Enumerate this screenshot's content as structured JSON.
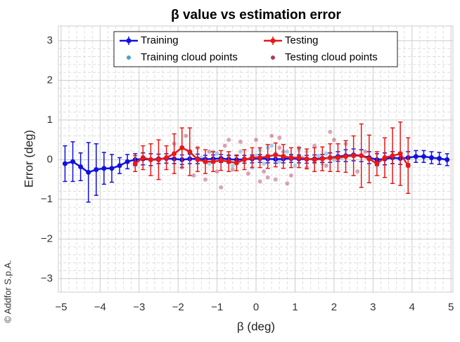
{
  "chart_data": {
    "type": "errorbar",
    "title": "β value vs estimation error",
    "x_label": "β (deg)",
    "y_label": "Error (deg)",
    "watermark": "© Addfor S.p.A.",
    "xlim": [
      -5.07,
      5.05
    ],
    "ylim": [
      -3.34,
      3.37
    ],
    "xticks": [
      {
        "value": -5,
        "label": "−5"
      },
      {
        "value": -4,
        "label": "−4"
      },
      {
        "value": -3,
        "label": "−3"
      },
      {
        "value": -2,
        "label": "−2"
      },
      {
        "value": -1,
        "label": "−1"
      },
      0,
      1,
      2,
      3,
      4,
      5
    ],
    "yticks": [
      {
        "value": -3,
        "label": "−3"
      },
      {
        "value": -2,
        "label": "−2"
      },
      {
        "value": -1,
        "label": "−1"
      },
      0,
      1,
      2,
      3
    ],
    "grid": true,
    "minor_divisions": 5,
    "legend": "north",
    "series": [
      {
        "name": "Training",
        "kind": "errorbar",
        "color": "#1010e0",
        "x": [
          -4.9,
          -4.7,
          -4.5,
          -4.3,
          -4.1,
          -3.9,
          -3.7,
          -3.5,
          -3.3,
          -3.1,
          -2.9,
          -2.7,
          -2.5,
          -2.3,
          -2.1,
          -1.9,
          -1.7,
          -1.5,
          -1.3,
          -1.1,
          -0.9,
          -0.7,
          -0.5,
          -0.3,
          -0.1,
          0.1,
          0.3,
          0.5,
          0.7,
          0.9,
          1.1,
          1.3,
          1.5,
          1.7,
          1.9,
          2.1,
          2.3,
          2.5,
          2.7,
          2.9,
          3.1,
          3.3,
          3.5,
          3.7,
          3.9,
          4.1,
          4.3,
          4.5,
          4.7,
          4.9
        ],
        "values": [
          -0.1,
          -0.05,
          -0.18,
          -0.32,
          -0.25,
          -0.22,
          -0.22,
          -0.15,
          -0.05,
          0,
          0.02,
          0,
          0.02,
          0.03,
          0.02,
          0,
          0.02,
          0.02,
          0.01,
          0.02,
          0.03,
          0.01,
          0,
          0.01,
          0.02,
          0.03,
          0.02,
          0.01,
          0.02,
          0.03,
          0.02,
          0.01,
          0.02,
          0.03,
          0.05,
          0.08,
          0.1,
          0.12,
          0.1,
          0.05,
          0,
          0.02,
          0.05,
          0.03,
          0.05,
          0.08,
          0.08,
          0.05,
          0.03,
          0
        ],
        "errors": [
          0.45,
          0.5,
          0.35,
          0.75,
          0.65,
          0.4,
          0.35,
          0.2,
          0.18,
          0.15,
          0.15,
          0.15,
          0.12,
          0.12,
          0.12,
          0.12,
          0.12,
          0.12,
          0.1,
          0.1,
          0.1,
          0.1,
          0.1,
          0.1,
          0.1,
          0.1,
          0.1,
          0.1,
          0.1,
          0.1,
          0.1,
          0.1,
          0.1,
          0.1,
          0.12,
          0.12,
          0.15,
          0.15,
          0.15,
          0.15,
          0.15,
          0.15,
          0.15,
          0.15,
          0.15,
          0.15,
          0.15,
          0.15,
          0.15,
          0.15
        ]
      },
      {
        "name": "Testing",
        "kind": "errorbar",
        "color": "#e81818",
        "x": [
          -3.1,
          -2.9,
          -2.7,
          -2.5,
          -2.3,
          -2.1,
          -1.9,
          -1.7,
          -1.5,
          -1.3,
          -1.1,
          -0.9,
          -0.7,
          -0.5,
          -0.3,
          -0.1,
          0.1,
          0.3,
          0.5,
          0.7,
          0.9,
          1.1,
          1.3,
          1.5,
          1.7,
          1.9,
          2.1,
          2.3,
          2.5,
          2.7,
          2.9,
          3.1,
          3.3,
          3.5,
          3.7,
          3.9
        ],
        "values": [
          -0.1,
          0.05,
          0,
          0,
          0.05,
          0.15,
          0.3,
          0.2,
          0,
          -0.05,
          -0.05,
          -0.02,
          -0.05,
          -0.08,
          0,
          0.05,
          0.05,
          0.08,
          0.12,
          0.08,
          0.05,
          0.05,
          0.02,
          0,
          0.02,
          0.05,
          0.05,
          0.08,
          0.1,
          0.1,
          0.02,
          -0.1,
          0.05,
          0.1,
          0.15,
          -0.15
        ],
        "errors": [
          0.2,
          0.3,
          0.4,
          0.5,
          0.3,
          0.5,
          0.5,
          0.6,
          0.3,
          0.3,
          0.25,
          0.25,
          0.25,
          0.2,
          0.25,
          0.25,
          0.25,
          0.3,
          0.3,
          0.3,
          0.25,
          0.25,
          0.25,
          0.3,
          0.3,
          0.35,
          0.35,
          0.4,
          0.5,
          0.8,
          0.6,
          0.3,
          0.5,
          0.7,
          0.8,
          0.7
        ]
      },
      {
        "name": "Training cloud points",
        "kind": "cloud",
        "color": "#4a9fd0",
        "x": [
          -1.4,
          -1.2,
          -1.0,
          -0.9,
          -0.7,
          -0.6,
          -0.4,
          -0.3,
          -0.1,
          0,
          0.1,
          0.2,
          0.3,
          0.5,
          0.6,
          0.8,
          0.9,
          1.0,
          1.2,
          1.3,
          1.5,
          1.6,
          1.8,
          2.0,
          2.2,
          -1.1,
          -0.5,
          0.4,
          1.1,
          1.7
        ],
        "values": [
          0.05,
          -0.1,
          0.15,
          -0.05,
          0.1,
          -0.15,
          0.2,
          0.05,
          -0.2,
          0.1,
          0.25,
          -0.1,
          0.3,
          0.15,
          -0.05,
          0.2,
          0.1,
          -0.15,
          0.05,
          0.2,
          -0.05,
          0.1,
          0.15,
          0,
          0.05,
          0.2,
          -0.1,
          0.35,
          0.25,
          -0.1
        ]
      },
      {
        "name": "Testing cloud points",
        "kind": "cloud",
        "color": "#b03a5a",
        "x": [
          -2.1,
          -1.9,
          -1.8,
          -1.6,
          -1.5,
          -1.2,
          -1.0,
          -0.8,
          -0.6,
          -0.4,
          -0.2,
          0,
          0.2,
          0.4,
          0.5,
          0.6,
          0.7,
          0.9,
          1.1,
          1.3,
          1.5,
          1.8,
          2.0,
          2.3,
          2.6,
          -1.3,
          -0.7,
          0.3,
          0.8,
          1.9,
          -0.9,
          0.1,
          0.6,
          2.8
        ],
        "values": [
          0.4,
          -0.2,
          0.6,
          -0.4,
          0.3,
          0.2,
          -0.3,
          0.35,
          -0.25,
          0.45,
          -0.35,
          0.5,
          -0.3,
          0.6,
          -0.5,
          0.55,
          0.2,
          -0.4,
          0.3,
          -0.2,
          0.35,
          -0.15,
          0.5,
          0.4,
          -0.3,
          -0.5,
          0.5,
          -0.45,
          -0.6,
          0.7,
          -0.7,
          -0.55,
          0.3,
          0.2
        ]
      }
    ]
  }
}
